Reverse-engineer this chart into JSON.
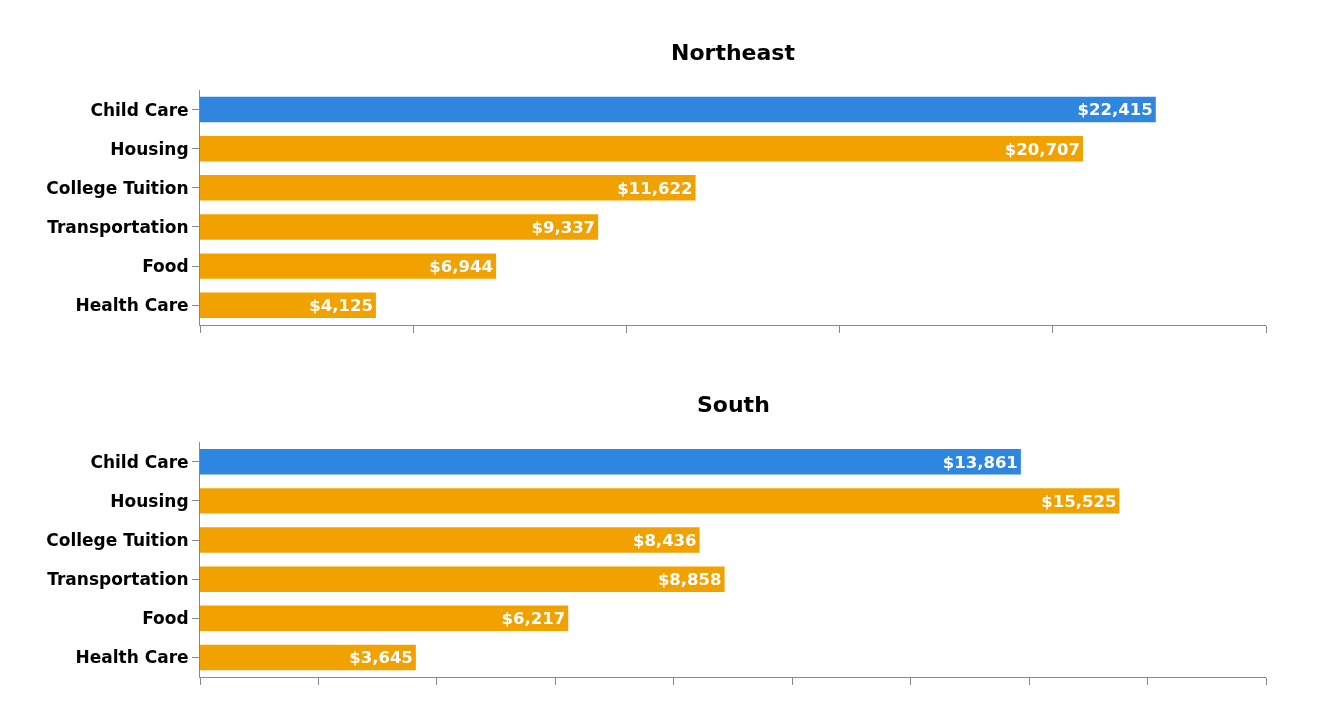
{
  "chart_data": [
    {
      "type": "bar",
      "orientation": "horizontal",
      "title": "Northeast",
      "categories": [
        "Child Care",
        "Housing",
        "College Tuition",
        "Transportation",
        "Food",
        "Health Care"
      ],
      "values": [
        22415,
        20707,
        11622,
        9337,
        6944,
        4125
      ],
      "colors": [
        "#2e86de",
        "#f2a200",
        "#f2a200",
        "#f2a200",
        "#f2a200",
        "#f2a200"
      ],
      "value_labels": [
        "$22,415",
        "$20,707",
        "$11,622",
        "$9,337",
        "$6,944",
        "$4,125"
      ],
      "xlim": [
        0,
        25000
      ],
      "xticks": [
        {
          "value": 0,
          "label": null
        },
        {
          "value": 5000,
          "label": null
        },
        {
          "value": 10000,
          "label": null
        },
        {
          "value": 15000,
          "label": null
        },
        {
          "value": 20000,
          "label": null
        },
        {
          "value": 25000,
          "label": null
        }
      ],
      "tick_labels": "y"
    },
    {
      "type": "bar",
      "orientation": "horizontal",
      "title": "South",
      "categories": [
        "Child Care",
        "Housing",
        "College Tuition",
        "Transportation",
        "Food",
        "Health Care"
      ],
      "values": [
        13861,
        15525,
        8436,
        8858,
        6217,
        3645
      ],
      "colors": [
        "#2e86de",
        "#f2a200",
        "#f2a200",
        "#f2a200",
        "#f2a200",
        "#f2a200"
      ],
      "value_labels": [
        "$13,861",
        "$15,525",
        "$8,436",
        "$8,858",
        "$6,217",
        "$3,645"
      ],
      "xlim": [
        0,
        18000
      ],
      "xticks": [
        {
          "value": 0,
          "label": null
        },
        {
          "value": 2000,
          "label": null
        },
        {
          "value": 4000,
          "label": null
        },
        {
          "value": 6000,
          "label": null
        },
        {
          "value": 8000,
          "label": null
        },
        {
          "value": 10000,
          "label": null
        },
        {
          "value": 12000,
          "label": null
        },
        {
          "value": 14000,
          "label": null
        },
        {
          "value": 16000,
          "label": null
        },
        {
          "value": 18000,
          "label": null
        }
      ],
      "tick_labels": "y"
    }
  ]
}
